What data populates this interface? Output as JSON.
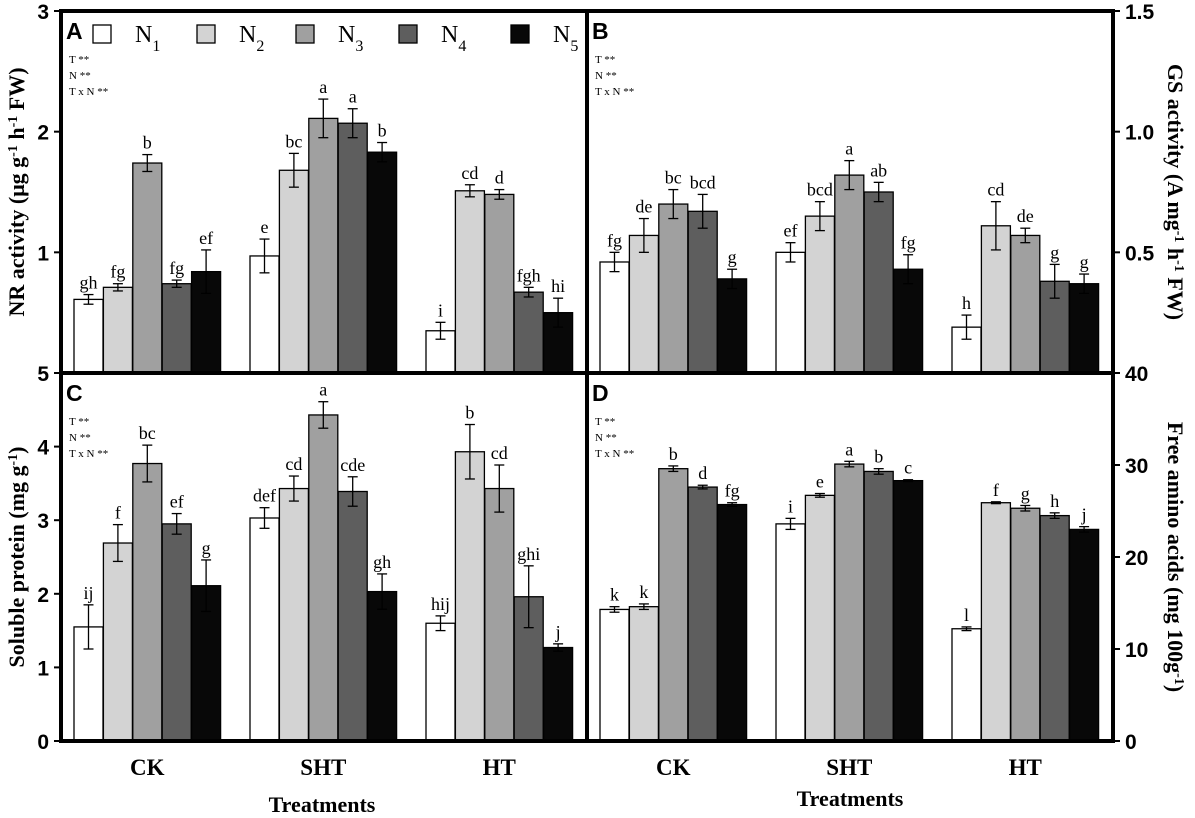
{
  "legend": {
    "entries": [
      {
        "base": "N",
        "sub": "1"
      },
      {
        "base": "N",
        "sub": "2"
      },
      {
        "base": "N",
        "sub": "3"
      },
      {
        "base": "N",
        "sub": "4"
      },
      {
        "base": "N",
        "sub": "5"
      }
    ],
    "colors": [
      "#ffffff",
      "#d3d3d3",
      "#a0a0a0",
      "#5e5e5e",
      "#080808"
    ]
  },
  "x_title": "Treatments",
  "chart_data": [
    {
      "id": "A",
      "type": "bar",
      "panel_letter": "A",
      "ylabel_parts": [
        "NR activity (μg g",
        "-1",
        " h",
        "-1",
        " FW)"
      ],
      "ylim": [
        0,
        3
      ],
      "yticks": [
        0,
        1,
        2,
        3
      ],
      "y_tick_labels": [
        "",
        "1",
        "2",
        "3"
      ],
      "y_axis_side": "left",
      "categories": [
        "CK",
        "SHT",
        "HT"
      ],
      "significance": [
        "T **",
        "N **",
        "T x N **"
      ],
      "series": [
        {
          "name": "N1",
          "values": [
            0.61,
            0.97,
            0.35
          ],
          "errors": [
            0.04,
            0.14,
            0.07
          ],
          "letters": [
            "gh",
            "e",
            "i"
          ]
        },
        {
          "name": "N2",
          "values": [
            0.71,
            1.68,
            1.51
          ],
          "errors": [
            0.03,
            0.14,
            0.05
          ],
          "letters": [
            "fg",
            "bc",
            "cd"
          ]
        },
        {
          "name": "N3",
          "values": [
            1.74,
            2.11,
            1.48
          ],
          "errors": [
            0.07,
            0.16,
            0.04
          ],
          "letters": [
            "b",
            "a",
            "d"
          ]
        },
        {
          "name": "N4",
          "values": [
            0.74,
            2.07,
            0.67
          ],
          "errors": [
            0.03,
            0.12,
            0.04
          ],
          "letters": [
            "fg",
            "a",
            "fgh"
          ]
        },
        {
          "name": "N5",
          "values": [
            0.84,
            1.83,
            0.5
          ],
          "errors": [
            0.18,
            0.08,
            0.12
          ],
          "letters": [
            "ef",
            "b",
            "hi"
          ]
        }
      ]
    },
    {
      "id": "B",
      "type": "bar",
      "panel_letter": "B",
      "ylabel_parts": [
        "GS activity (A mg",
        "-1",
        " h",
        "-1",
        " FW)"
      ],
      "ylim": [
        0,
        1.5
      ],
      "yticks": [
        0,
        0.5,
        1.0,
        1.5
      ],
      "y_tick_labels": [
        "",
        "0.5",
        "1.0",
        "1.5"
      ],
      "y_axis_side": "right",
      "categories": [
        "CK",
        "SHT",
        "HT"
      ],
      "significance": [
        "T **",
        "N **",
        "T x N **"
      ],
      "series": [
        {
          "name": "N1",
          "values": [
            0.46,
            0.5,
            0.19
          ],
          "errors": [
            0.04,
            0.04,
            0.05
          ],
          "letters": [
            "fg",
            "ef",
            "h"
          ]
        },
        {
          "name": "N2",
          "values": [
            0.57,
            0.65,
            0.61
          ],
          "errors": [
            0.07,
            0.06,
            0.1
          ],
          "letters": [
            "de",
            "bcd",
            "cd"
          ]
        },
        {
          "name": "N3",
          "values": [
            0.7,
            0.82,
            0.57
          ],
          "errors": [
            0.06,
            0.06,
            0.03
          ],
          "letters": [
            "bc",
            "a",
            "de"
          ]
        },
        {
          "name": "N4",
          "values": [
            0.67,
            0.75,
            0.38
          ],
          "errors": [
            0.07,
            0.04,
            0.07
          ],
          "letters": [
            "bcd",
            "ab",
            "g"
          ]
        },
        {
          "name": "N5",
          "values": [
            0.39,
            0.43,
            0.37
          ],
          "errors": [
            0.04,
            0.06,
            0.04
          ],
          "letters": [
            "g",
            "fg",
            "g"
          ]
        }
      ]
    },
    {
      "id": "C",
      "type": "bar",
      "panel_letter": "C",
      "ylabel_parts": [
        "Soluble protein (mg g",
        "-1",
        ")"
      ],
      "ylim": [
        0,
        5
      ],
      "yticks": [
        0,
        1,
        2,
        3,
        4,
        5
      ],
      "y_tick_labels": [
        "0",
        "1",
        "2",
        "3",
        "4",
        "5"
      ],
      "y_axis_side": "left",
      "categories": [
        "CK",
        "SHT",
        "HT"
      ],
      "significance": [
        "T **",
        "N **",
        "T x N **"
      ],
      "series": [
        {
          "name": "N1",
          "values": [
            1.55,
            3.03,
            1.6
          ],
          "errors": [
            0.3,
            0.14,
            0.1
          ],
          "letters": [
            "ij",
            "def",
            "hij"
          ]
        },
        {
          "name": "N2",
          "values": [
            2.69,
            3.43,
            3.93
          ],
          "errors": [
            0.25,
            0.17,
            0.37
          ],
          "letters": [
            "f",
            "cd",
            "b"
          ]
        },
        {
          "name": "N3",
          "values": [
            3.77,
            4.43,
            3.43
          ],
          "errors": [
            0.25,
            0.18,
            0.32
          ],
          "letters": [
            "bc",
            "a",
            "cd"
          ]
        },
        {
          "name": "N4",
          "values": [
            2.95,
            3.39,
            1.96
          ],
          "errors": [
            0.14,
            0.2,
            0.42
          ],
          "letters": [
            "ef",
            "cde",
            "ghi"
          ]
        },
        {
          "name": "N5",
          "values": [
            2.11,
            2.03,
            1.27
          ],
          "errors": [
            0.35,
            0.24,
            0.05
          ],
          "letters": [
            "g",
            "gh",
            "j"
          ]
        }
      ]
    },
    {
      "id": "D",
      "type": "bar",
      "panel_letter": "D",
      "ylabel_parts": [
        "Free amino acids (mg 100g",
        "-1",
        ")"
      ],
      "ylim": [
        0,
        40
      ],
      "yticks": [
        0,
        10,
        20,
        30,
        40
      ],
      "y_tick_labels": [
        "0",
        "10",
        "20",
        "30",
        "40"
      ],
      "y_axis_side": "right",
      "categories": [
        "CK",
        "SHT",
        "HT"
      ],
      "significance": [
        "T **",
        "N **",
        "T x N **"
      ],
      "series": [
        {
          "name": "N1",
          "values": [
            14.3,
            23.6,
            12.2
          ],
          "errors": [
            0.3,
            0.6,
            0.2
          ],
          "letters": [
            "k",
            "i",
            "l"
          ]
        },
        {
          "name": "N2",
          "values": [
            14.6,
            26.7,
            25.9
          ],
          "errors": [
            0.3,
            0.2,
            0.1
          ],
          "letters": [
            "k",
            "e",
            "f"
          ]
        },
        {
          "name": "N3",
          "values": [
            29.6,
            30.1,
            25.3
          ],
          "errors": [
            0.3,
            0.3,
            0.3
          ],
          "letters": [
            "b",
            "a",
            "g"
          ]
        },
        {
          "name": "N4",
          "values": [
            27.6,
            29.3,
            24.5
          ],
          "errors": [
            0.2,
            0.3,
            0.3
          ],
          "letters": [
            "d",
            "b",
            "h"
          ]
        },
        {
          "name": "N5",
          "values": [
            25.7,
            28.3,
            23.0
          ],
          "errors": [
            0.2,
            0.1,
            0.3
          ],
          "letters": [
            "fg",
            "c",
            "j"
          ]
        }
      ]
    }
  ]
}
